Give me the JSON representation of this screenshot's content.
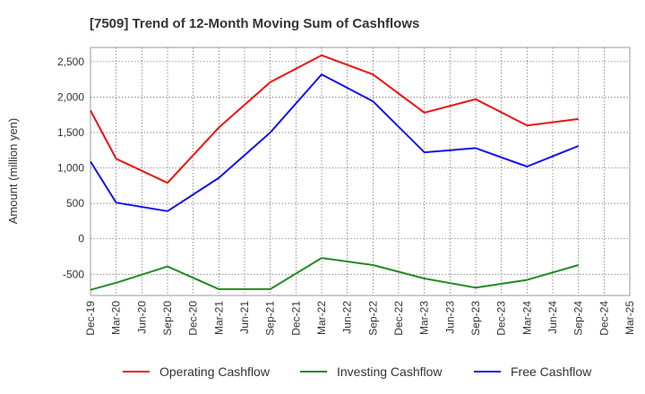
{
  "chart_data": {
    "type": "line",
    "title": "[7509]  Trend of 12-Month Moving Sum of Cashflows",
    "xlabel": "",
    "ylabel": "Amount (million yen)",
    "ylim": [
      -800,
      2700
    ],
    "yticks": [
      -500,
      0,
      500,
      1000,
      1500,
      2000,
      2500
    ],
    "ytick_labels": [
      "-500",
      "0",
      "500",
      "1,000",
      "1,500",
      "2,000",
      "2,500"
    ],
    "categories": [
      "Dec-19",
      "Mar-20",
      "Jun-20",
      "Sep-20",
      "Dec-20",
      "Mar-21",
      "Jun-21",
      "Sep-21",
      "Dec-21",
      "Mar-22",
      "Jun-22",
      "Sep-22",
      "Dec-22",
      "Mar-23",
      "Jun-23",
      "Sep-23",
      "Dec-23",
      "Mar-24",
      "Jun-24",
      "Sep-24",
      "Dec-24",
      "Mar-25"
    ],
    "grid": true,
    "legend_position": "bottom",
    "series": [
      {
        "name": "Operating Cashflow",
        "color": "#ee1111",
        "values": [
          1810,
          1130,
          null,
          790,
          null,
          1570,
          null,
          2210,
          null,
          2590,
          null,
          2320,
          null,
          1780,
          null,
          1970,
          null,
          1600,
          null,
          1690,
          null,
          null
        ]
      },
      {
        "name": "Investing Cashflow",
        "color": "#228b22",
        "values": [
          -720,
          -620,
          null,
          -390,
          null,
          -710,
          null,
          -710,
          null,
          -270,
          null,
          -370,
          null,
          -560,
          null,
          -690,
          null,
          -580,
          null,
          -370,
          null,
          null
        ]
      },
      {
        "name": "Free Cashflow",
        "color": "#1111ee",
        "values": [
          1090,
          510,
          null,
          390,
          null,
          860,
          null,
          1500,
          null,
          2320,
          null,
          1940,
          null,
          1220,
          null,
          1280,
          null,
          1020,
          null,
          1310,
          null,
          null
        ]
      }
    ]
  }
}
